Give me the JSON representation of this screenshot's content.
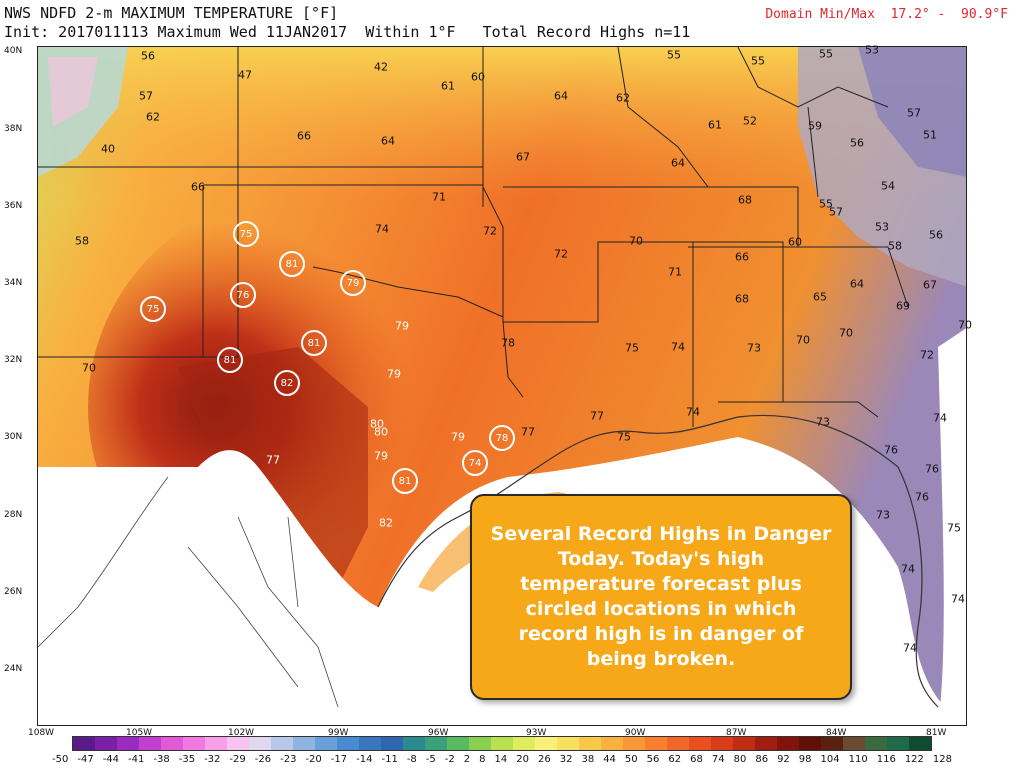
{
  "header": {
    "line1": "NWS NDFD 2-m MAXIMUM TEMPERATURE [°F]",
    "line2": "Init: 2017011113 Maximum Wed 11JAN2017  Within 1°F   Total Record Highs n=11",
    "domain": "Domain Min/Max  17.2° -  90.9°F"
  },
  "latitudes": [
    "40N",
    "38N",
    "36N",
    "34N",
    "32N",
    "30N",
    "28N",
    "26N",
    "24N"
  ],
  "longitudes": [
    "108W",
    "105W",
    "102W",
    "99W",
    "96W",
    "93W",
    "90W",
    "87W",
    "84W",
    "81W"
  ],
  "values": [
    "56",
    "47",
    "42",
    "61",
    "60",
    "64",
    "62",
    "55",
    "55",
    "55",
    "53",
    "57",
    "62",
    "40",
    "66",
    "64",
    "67",
    "58",
    "61",
    "52",
    "59",
    "57",
    "51",
    "56",
    "66",
    "71",
    "68",
    "64",
    "54",
    "55",
    "57",
    "53",
    "58",
    "74",
    "72",
    "72",
    "70",
    "66",
    "60",
    "56",
    "71",
    "64",
    "67",
    "68",
    "65",
    "69",
    "70",
    "79",
    "78",
    "75",
    "74",
    "73",
    "70",
    "70",
    "72",
    "70",
    "79",
    "77",
    "74",
    "73",
    "74",
    "80",
    "80",
    "79",
    "77",
    "77",
    "76",
    "75",
    "82",
    "76",
    "76",
    "73",
    "75",
    "74",
    "79",
    "74",
    "74"
  ],
  "records": [
    "75",
    "81",
    "79",
    "76",
    "75",
    "81",
    "81",
    "82",
    "78",
    "81",
    "74"
  ],
  "callout": "Several Record Highs in Danger Today. Today's high temperature forecast plus circled locations in which record high is in danger of being broken.",
  "colorbar": {
    "ticks": [
      "-50",
      "-47",
      "-44",
      "-41",
      "-38",
      "-35",
      "-32",
      "-29",
      "-26",
      "-23",
      "-20",
      "-17",
      "-14",
      "-11",
      "-8",
      "-5",
      "-2",
      "2",
      "8",
      "14",
      "20",
      "26",
      "32",
      "38",
      "44",
      "50",
      "56",
      "62",
      "68",
      "74",
      "80",
      "86",
      "92",
      "98",
      "104",
      "110",
      "116",
      "122",
      "128"
    ],
    "colors": [
      "#5a1a8a",
      "#7a1fa8",
      "#9b2bc0",
      "#c23fd0",
      "#e05ad8",
      "#f07ae0",
      "#f5a0e8",
      "#f8c4f0",
      "#e0d8f0",
      "#b8c8ea",
      "#90b4e2",
      "#6aa0da",
      "#4a8ad0",
      "#3a76c0",
      "#2e66b0",
      "#2a8a90",
      "#3aa078",
      "#5aba60",
      "#8ad050",
      "#b8e050",
      "#e0ec60",
      "#f8f07a",
      "#f8e060",
      "#f8c848",
      "#f8b040",
      "#f89838",
      "#f88030",
      "#f06828",
      "#e85020",
      "#d83c18",
      "#c02c14",
      "#a01e10",
      "#80140c",
      "#601008",
      "#5a2010",
      "#6a4a30",
      "#3a6a40",
      "#206a48",
      "#104a30"
    ]
  }
}
